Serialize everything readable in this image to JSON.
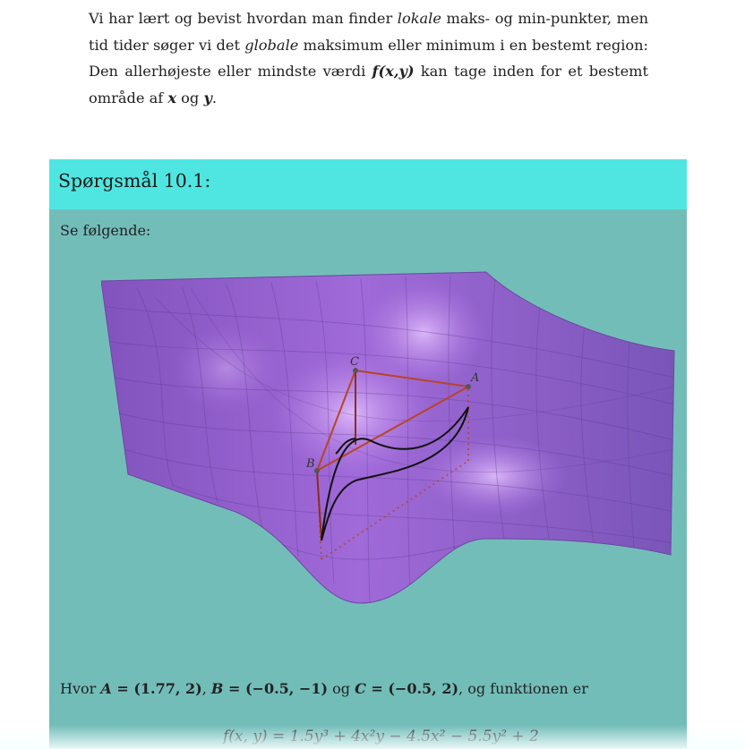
{
  "intro": {
    "part1": "Vi har lært og bevist hvordan man finder ",
    "em1": "lokale",
    "part2": " maks- og min-punkter, men tid tider søger vi det ",
    "em2": "globale",
    "part3": " maksimum eller minimum i en bestemt region: Den allerhøjeste eller mindste værdi ",
    "fxy": "f(x,y)",
    "part4": " kan tage inden for et bestemt område af ",
    "x": "x",
    "og": " og ",
    "y": "y",
    "end": "."
  },
  "question": {
    "title": "Spørgsmål 10.1:",
    "lead": "Se følgende:",
    "figure": {
      "label_a": "A",
      "label_b": "B",
      "label_c": "C",
      "surface_color": "#9a63d2",
      "triangle_color": "#b84428"
    },
    "cond_prefix": "Hvor ",
    "a_name": "A",
    "a_val": " = (1.77, 2)",
    "sep1": ", ",
    "b_name": "B",
    "b_val": " = (−0.5, −1)",
    "sep2": " og ",
    "c_name": "C",
    "c_val": " = (−0.5, 2)",
    "cond_suffix": ", og funktionen er",
    "formula": "f(x, y) = 1.5y³ + 4x²y − 4.5x² − 5.5y² + 2"
  }
}
